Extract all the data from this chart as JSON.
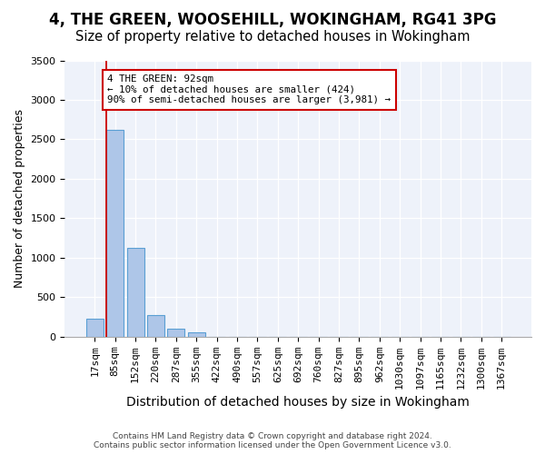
{
  "title": "4, THE GREEN, WOOSEHILL, WOKINGHAM, RG41 3PG",
  "subtitle": "Size of property relative to detached houses in Wokingham",
  "xlabel": "Distribution of detached houses by size in Wokingham",
  "ylabel": "Number of detached properties",
  "bin_labels": [
    "17sqm",
    "85sqm",
    "152sqm",
    "220sqm",
    "287sqm",
    "355sqm",
    "422sqm",
    "490sqm",
    "557sqm",
    "625sqm",
    "692sqm",
    "760sqm",
    "827sqm",
    "895sqm",
    "962sqm",
    "1030sqm",
    "1097sqm",
    "1165sqm",
    "1232sqm",
    "1300sqm",
    "1367sqm"
  ],
  "bar_values": [
    230,
    2620,
    1120,
    270,
    100,
    55,
    0,
    0,
    0,
    0,
    0,
    0,
    0,
    0,
    0,
    0,
    0,
    0,
    0,
    0,
    0
  ],
  "bar_color": "#aec6e8",
  "bar_edge_color": "#5a9fd4",
  "property_line_color": "#cc0000",
  "annotation_text": "4 THE GREEN: 92sqm\n← 10% of detached houses are smaller (424)\n90% of semi-detached houses are larger (3,981) →",
  "annotation_box_color": "#ffffff",
  "annotation_box_edge": "#cc0000",
  "ylim": [
    0,
    3500
  ],
  "yticks": [
    0,
    500,
    1000,
    1500,
    2000,
    2500,
    3000,
    3500
  ],
  "background_color": "#eef2fa",
  "footer_text": "Contains HM Land Registry data © Crown copyright and database right 2024.\nContains public sector information licensed under the Open Government Licence v3.0.",
  "title_fontsize": 12,
  "subtitle_fontsize": 10.5,
  "xlabel_fontsize": 10,
  "ylabel_fontsize": 9,
  "tick_fontsize": 8
}
